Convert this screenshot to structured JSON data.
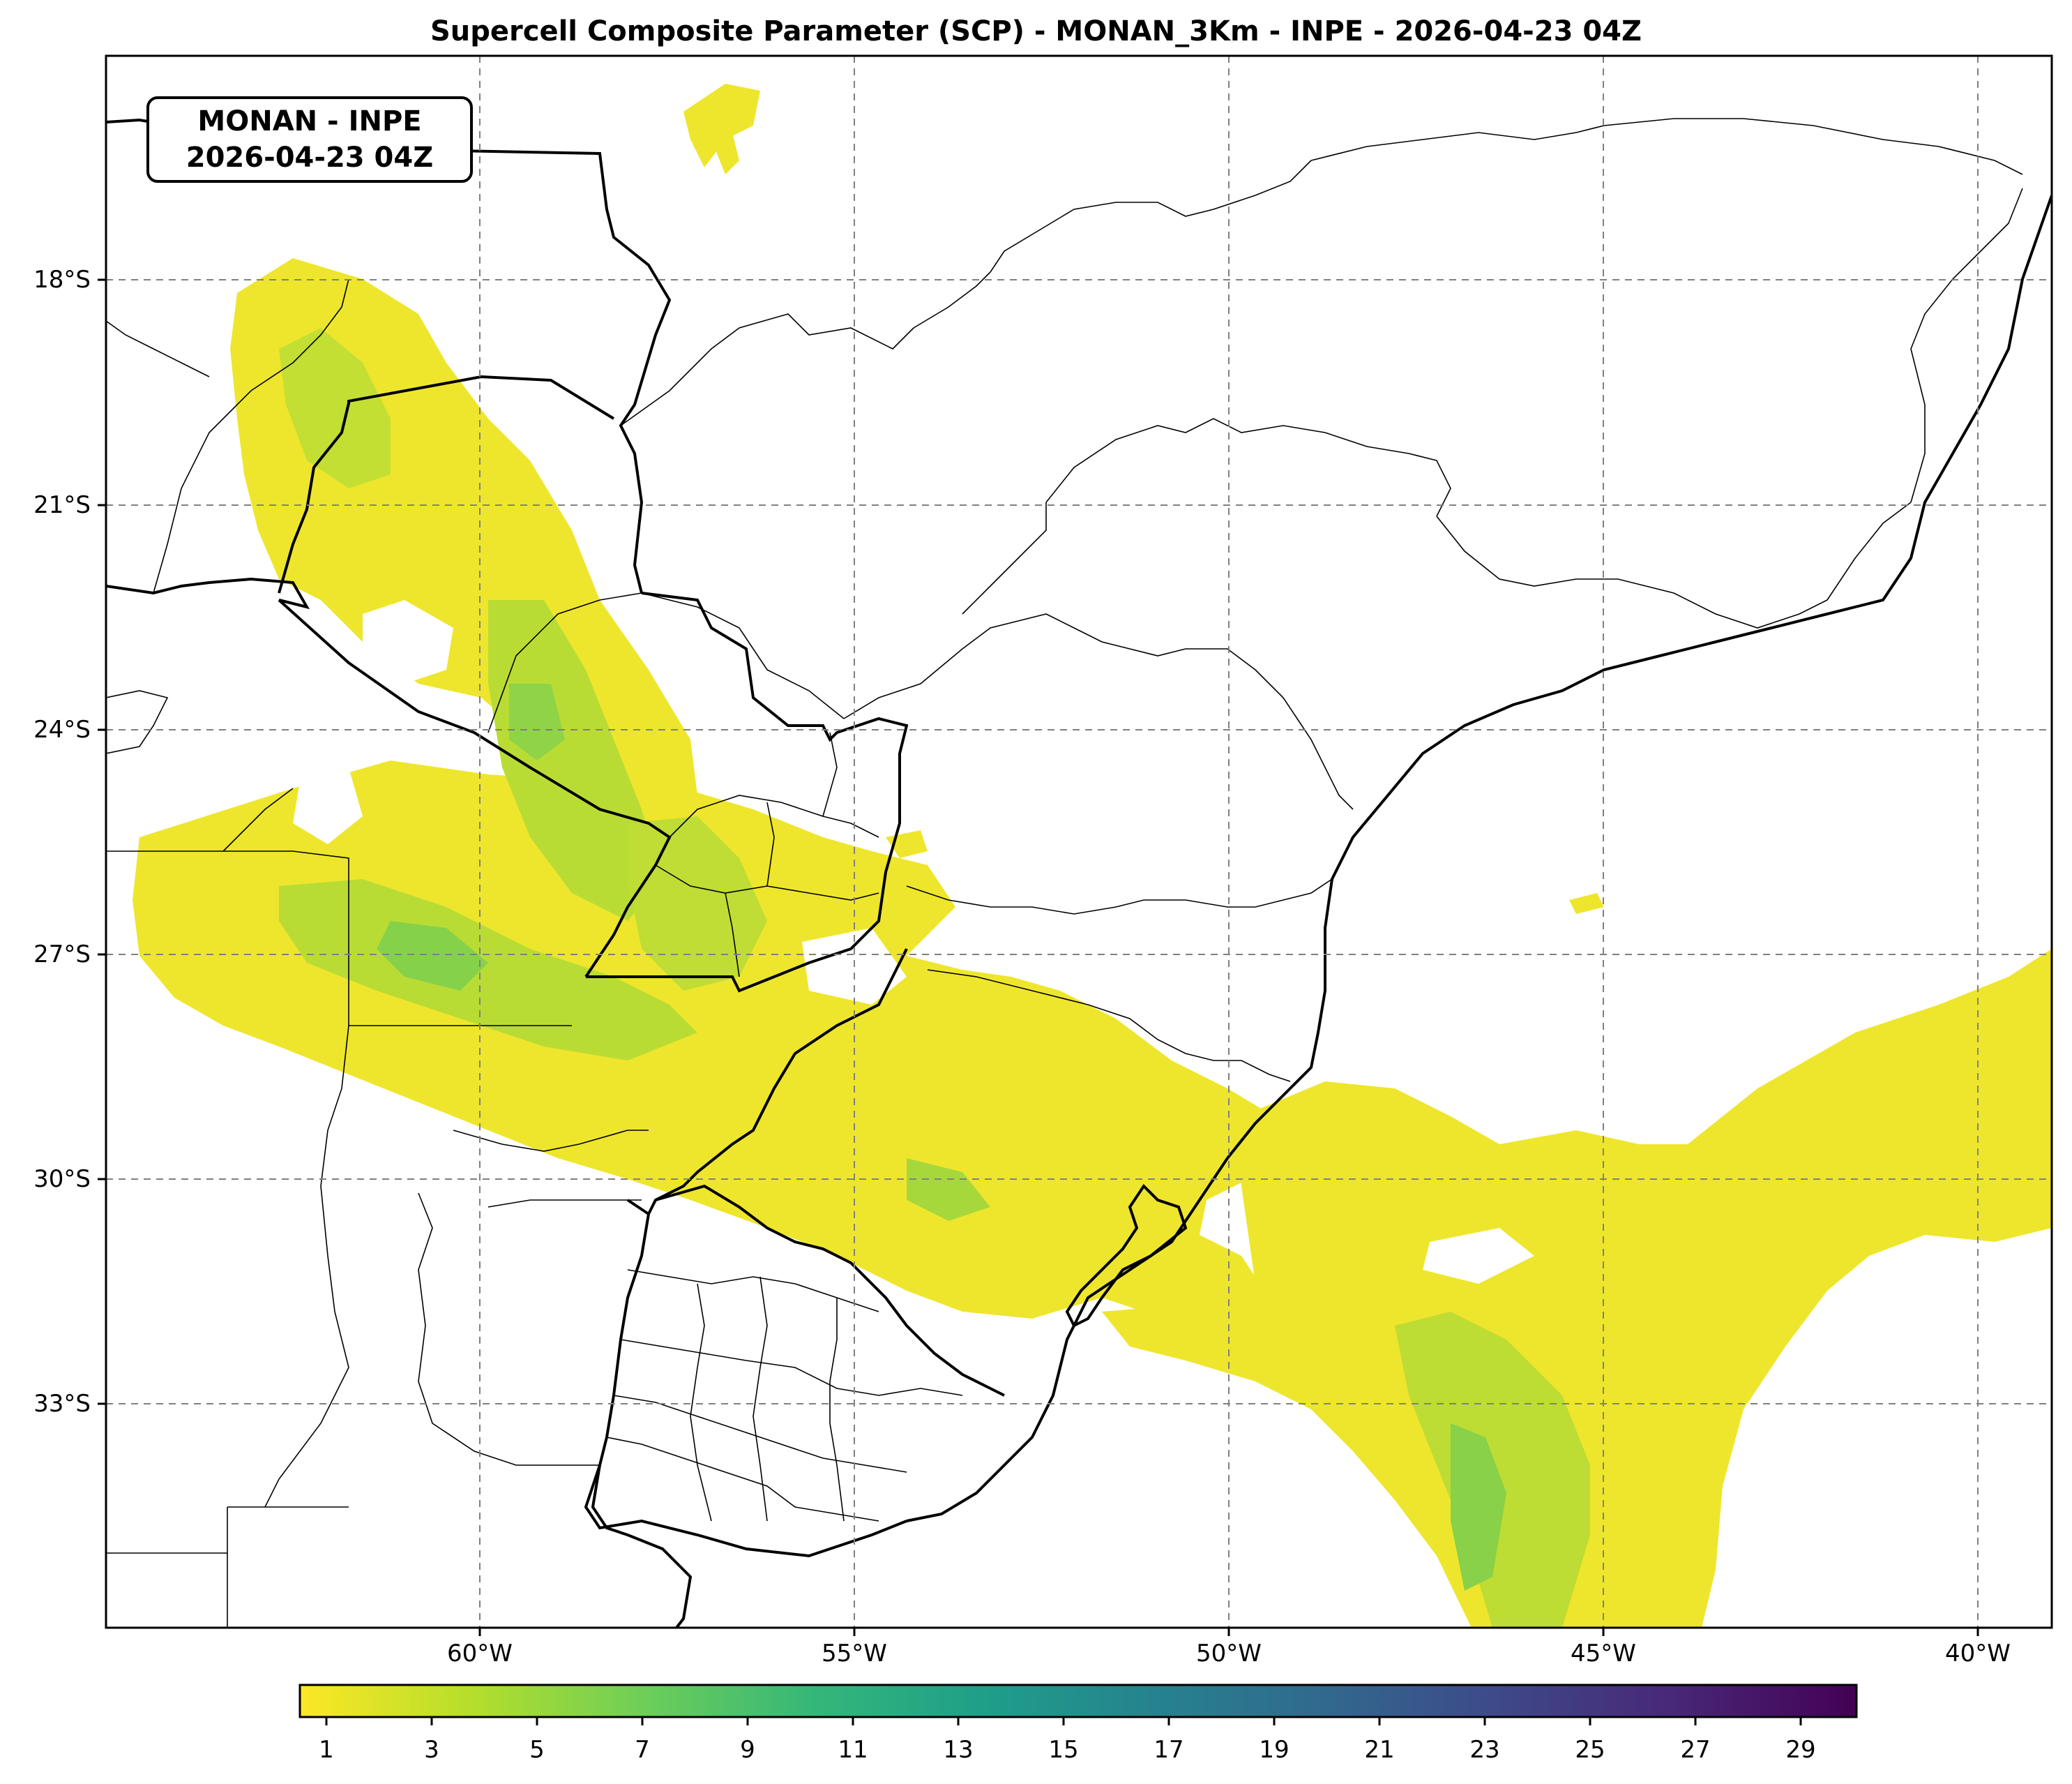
{
  "title": "Supercell Composite Parameter (SCP) - MONAN_3Km - INPE - 2026-04-23 04Z",
  "info_box": {
    "line1": "MONAN - INPE",
    "line2": "2026-04-23 04Z"
  },
  "lat_labels": [
    "18°S",
    "21°S",
    "24°S",
    "27°S",
    "30°S",
    "33°S"
  ],
  "lon_labels": [
    "60°W",
    "55°W",
    "50°W",
    "45°W",
    "40°W"
  ],
  "colorbar": {
    "ticks": [
      "1",
      "3",
      "5",
      "7",
      "9",
      "11",
      "13",
      "15",
      "17",
      "19",
      "21",
      "23",
      "25",
      "27",
      "29"
    ],
    "colors": [
      "#fde725",
      "#b5de2b",
      "#6ece58",
      "#35b779",
      "#1f9e89",
      "#26828e",
      "#31688e",
      "#3e4989",
      "#482878",
      "#440154"
    ]
  },
  "field_colors": {
    "low": "#f0e52a",
    "mid": "#b8dd33",
    "high": "#7ccf4f",
    "peak": "#4dbf6a"
  }
}
